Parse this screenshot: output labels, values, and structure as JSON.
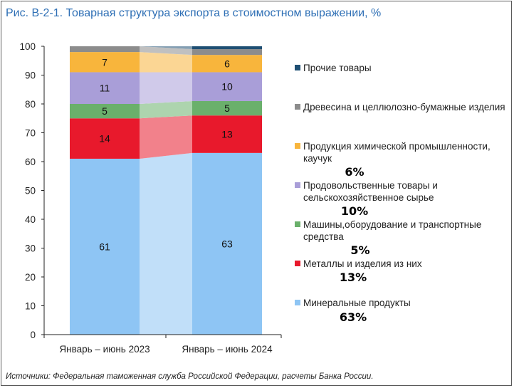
{
  "title": "Рис. В-2-1. Товарная структура экспорта в стоимостном выражении, %",
  "source": "Источники: Федеральная таможенная служба Российской Федерации, расчеты Банка России.",
  "chart_data": {
    "type": "bar",
    "stacked": true,
    "categories": [
      "Январь – июнь 2023",
      "Январь – июнь 2024"
    ],
    "ylim": [
      0,
      100
    ],
    "yticks": [
      0,
      10,
      20,
      30,
      40,
      50,
      60,
      70,
      80,
      90,
      100
    ],
    "grid": false,
    "legend_position": "right",
    "series": [
      {
        "name": "Минеральные продукты",
        "color": "#8ec5f4",
        "values": [
          61,
          63
        ],
        "labels": [
          "61",
          "63"
        ],
        "overlay": "63%"
      },
      {
        "name": "Металлы и изделия из них",
        "color": "#e8192c",
        "values": [
          14,
          13
        ],
        "labels": [
          "14",
          "13"
        ],
        "overlay": "13%"
      },
      {
        "name": "Машины,оборудование и транспортные средства",
        "color": "#6ab06b",
        "values": [
          5,
          5
        ],
        "labels": [
          "5",
          "5"
        ],
        "overlay": "5%"
      },
      {
        "name": "Продовольственные товары и сельскохозяйственное сырье",
        "color": "#a99ed8",
        "values": [
          11,
          10
        ],
        "labels": [
          "11",
          "10"
        ],
        "overlay": "10%"
      },
      {
        "name": "Продукция химической промышленности, каучук",
        "color": "#f8b53c",
        "values": [
          7,
          6
        ],
        "labels": [
          "7",
          "6"
        ],
        "overlay": "6%"
      },
      {
        "name": "Древесина и целлюлозно-бумажные изделия",
        "color": "#8c8c8c",
        "values": [
          2,
          2
        ],
        "labels": [
          "",
          ""
        ],
        "overlay": ""
      },
      {
        "name": "Прочие товары",
        "color": "#1e4f73",
        "values": [
          0.5,
          0.5
        ],
        "labels": [
          "",
          ""
        ],
        "overlay": ""
      }
    ]
  }
}
